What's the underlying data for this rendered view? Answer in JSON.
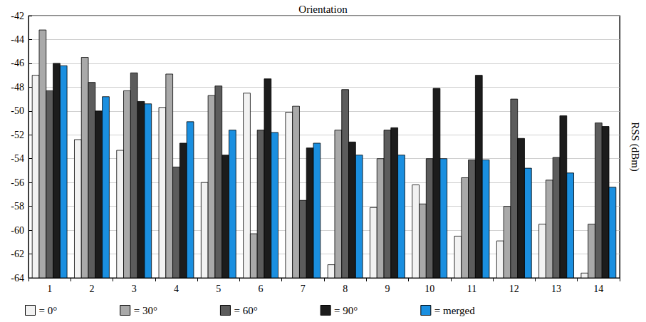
{
  "chart_data": {
    "type": "bar",
    "title": "Orientation",
    "y_label": "RSS (dBm)",
    "categories": [
      "1",
      "2",
      "3",
      "4",
      "5",
      "6",
      "7",
      "8",
      "9",
      "10",
      "11",
      "12",
      "13",
      "14"
    ],
    "series": [
      {
        "name": "= 0°",
        "color": "#f2f2f2",
        "values": [
          -47.0,
          -52.4,
          -53.3,
          -49.7,
          -56.0,
          -48.5,
          -50.1,
          -62.9,
          -58.1,
          -56.2,
          -60.5,
          -60.9,
          -59.5,
          -63.6
        ]
      },
      {
        "name": "= 30°",
        "color": "#a9a9a9",
        "values": [
          -43.2,
          -45.5,
          -48.3,
          -46.9,
          -48.7,
          -60.3,
          -49.6,
          -51.6,
          -54.0,
          -57.8,
          -55.6,
          -58.0,
          -55.8,
          -59.5
        ]
      },
      {
        "name": "= 60°",
        "color": "#5c5c5c",
        "values": [
          -48.3,
          -47.6,
          -46.8,
          -54.7,
          -47.9,
          -51.6,
          -57.5,
          -48.2,
          -51.6,
          -54.0,
          -54.1,
          -49.0,
          -53.9,
          -51.0
        ]
      },
      {
        "name": "= 90°",
        "color": "#1c1c1c",
        "values": [
          -46.0,
          -50.0,
          -49.2,
          -52.7,
          -53.7,
          -47.3,
          -53.1,
          -52.6,
          -51.4,
          -48.1,
          -47.0,
          -52.3,
          -50.4,
          -51.3
        ]
      },
      {
        "name": "= merged",
        "color": "#1a8fe0",
        "values": [
          -46.2,
          -48.8,
          -49.4,
          -50.9,
          -51.6,
          -51.8,
          -52.7,
          -53.7,
          -53.7,
          -54.0,
          -54.1,
          -54.8,
          -55.2,
          -56.4
        ]
      }
    ],
    "ylim": [
      -64,
      -42
    ],
    "yticks": [
      -64,
      -62,
      -60,
      -58,
      -56,
      -54,
      -52,
      -50,
      -48,
      -46,
      -44,
      -42
    ],
    "grid": true,
    "legend": "bottom"
  }
}
